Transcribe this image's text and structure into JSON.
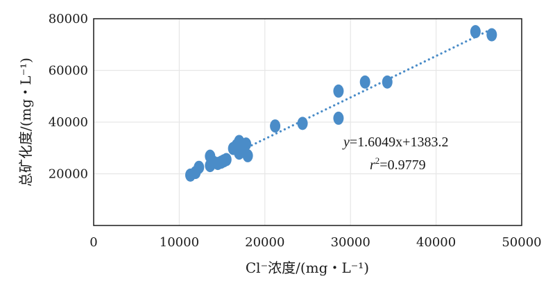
{
  "chart_data": {
    "type": "scatter",
    "xlabel": "Cl⁻浓度/(mg・L⁻¹)",
    "ylabel": "总矿化度/(mg・L⁻¹)",
    "xlim": [
      0,
      50000
    ],
    "ylim": [
      0,
      80000
    ],
    "xticks": [
      0,
      10000,
      20000,
      30000,
      40000,
      50000
    ],
    "yticks": [
      20000,
      40000,
      60000,
      80000
    ],
    "xtick_labels": [
      "0",
      "10000",
      "20000",
      "30000",
      "40000",
      "50000"
    ],
    "ytick_labels": [
      "20000",
      "40000",
      "60000",
      "80000"
    ],
    "grid": true,
    "point_color": "#4a8cc8",
    "trendline_color": "#4a8cc8",
    "series": [
      {
        "points": [
          {
            "x": 11300,
            "y": 19500
          },
          {
            "x": 11900,
            "y": 20500
          },
          {
            "x": 12300,
            "y": 22500
          },
          {
            "x": 13600,
            "y": 23200
          },
          {
            "x": 13600,
            "y": 26800
          },
          {
            "x": 14000,
            "y": 24500
          },
          {
            "x": 14500,
            "y": 24000
          },
          {
            "x": 14900,
            "y": 24500
          },
          {
            "x": 15200,
            "y": 25000
          },
          {
            "x": 15500,
            "y": 25500
          },
          {
            "x": 16300,
            "y": 29800
          },
          {
            "x": 16700,
            "y": 31000
          },
          {
            "x": 17000,
            "y": 28000
          },
          {
            "x": 17000,
            "y": 32500
          },
          {
            "x": 17500,
            "y": 29000
          },
          {
            "x": 17800,
            "y": 31500
          },
          {
            "x": 18000,
            "y": 27000
          },
          {
            "x": 21200,
            "y": 38500
          },
          {
            "x": 24400,
            "y": 39500
          },
          {
            "x": 28600,
            "y": 52000
          },
          {
            "x": 28600,
            "y": 41500
          },
          {
            "x": 31700,
            "y": 55500
          },
          {
            "x": 34300,
            "y": 55500
          },
          {
            "x": 44600,
            "y": 75000
          },
          {
            "x": 46500,
            "y": 73800
          }
        ]
      }
    ],
    "trendline": {
      "slope": 1.6049,
      "intercept": 1383.2,
      "x_range": [
        17500,
        46000
      ],
      "equation_lhs": "y",
      "equation_rhs": "=1.6049x+1383.2",
      "r2_label": "r",
      "r2_sup": "2",
      "r2_value": "=0.9779"
    }
  }
}
